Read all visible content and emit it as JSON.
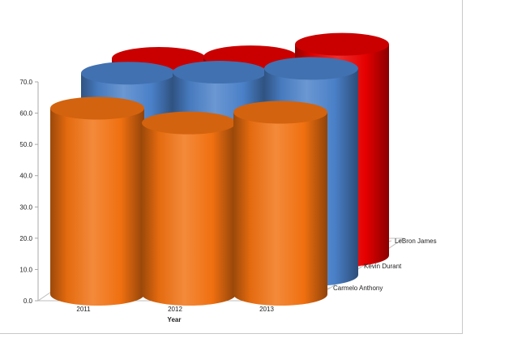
{
  "chart_data": {
    "type": "bar",
    "bar_shape": "cylinder",
    "three_d": true,
    "categories": [
      "2011",
      "2012",
      "2013"
    ],
    "xlabel": "Year",
    "ylabel": "",
    "ylim": [
      0,
      70
    ],
    "yticks": [
      "0.0",
      "10.0",
      "20.0",
      "30.0",
      "40.0",
      "50.0",
      "60.0",
      "70.0"
    ],
    "series": [
      {
        "name": "Carmelo Anthony",
        "color": "#f07010",
        "values": [
          59.5,
          54.8,
          58.2
        ]
      },
      {
        "name": "Kevin Durant",
        "color": "#4a80c8",
        "values": [
          64.5,
          64.8,
          66.0
        ]
      },
      {
        "name": "LeBron James",
        "color": "#e60000",
        "values": [
          63.0,
          63.5,
          67.5
        ]
      }
    ],
    "grid": false,
    "legend": "none"
  }
}
